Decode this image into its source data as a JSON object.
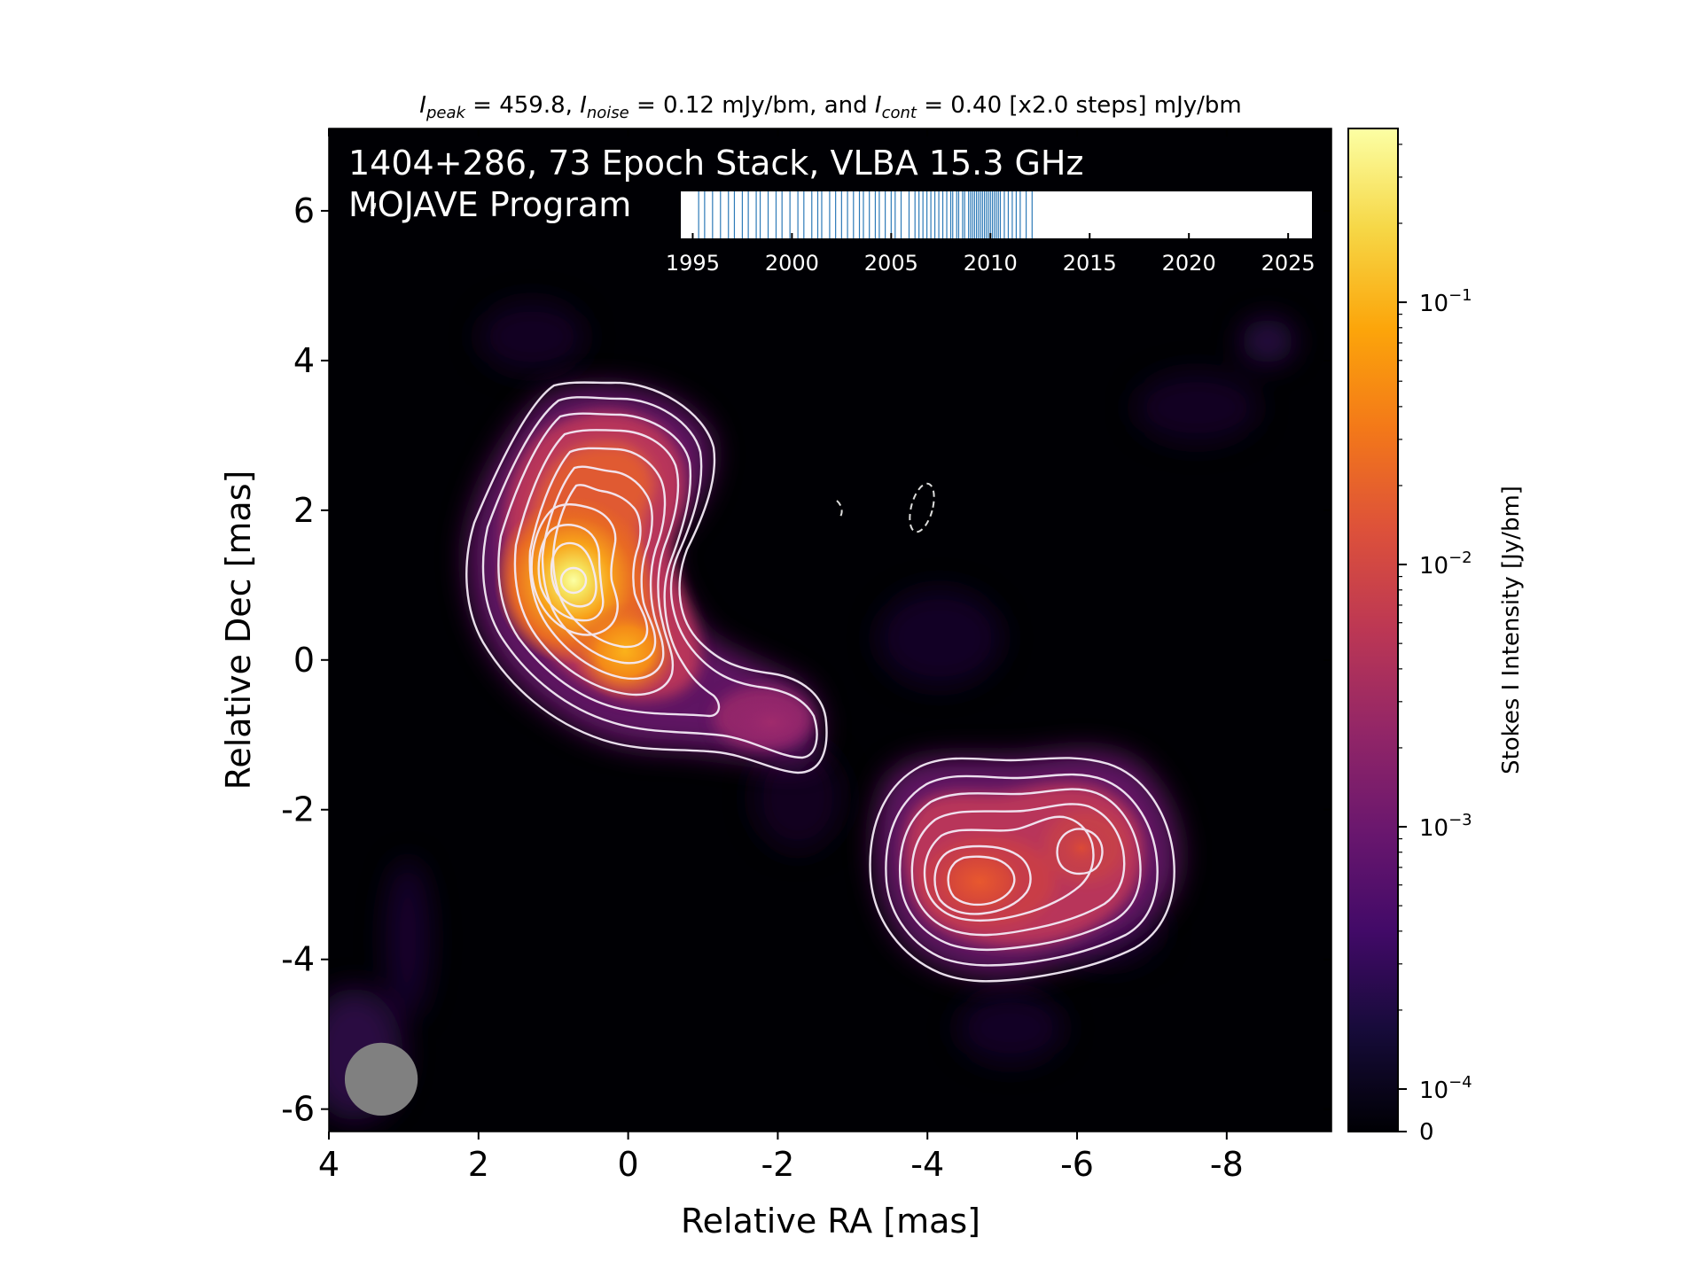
{
  "chart_data": {
    "type": "heatmap",
    "header_segments": [
      "I",
      "peak",
      " = 459.8, ",
      "I",
      "noise",
      " = 0.12 mJy/bm, and ",
      "I",
      "cont",
      " = 0.40 [x2.0 steps] mJy/bm"
    ],
    "title_line1": "1404+286, 73 Epoch Stack, VLBA 15.3 GHz",
    "title_line2": "MOJAVE Program",
    "xlabel": "Relative RA [mas]",
    "ylabel": "Relative Dec [mas]",
    "xlim": [
      4.0,
      -9.4
    ],
    "ylim": [
      -6.3,
      7.1
    ],
    "x_ticks": [
      4,
      2,
      0,
      -2,
      -4,
      -6,
      -8
    ],
    "x_tick_labels": [
      "4",
      "2",
      "0",
      "-2",
      "-4",
      "-6",
      "-8"
    ],
    "y_ticks": [
      6,
      4,
      2,
      0,
      -2,
      -4,
      -6
    ],
    "y_tick_labels": [
      "6",
      "4",
      "2",
      "0",
      "-2",
      "-4",
      "-6"
    ],
    "colormap": "inferno",
    "colorbar": {
      "label": "Stokes I Intensity [Jy/bm]",
      "scale": "log",
      "ticks": [
        {
          "value": 0.1,
          "base": "10",
          "exp": "−1"
        },
        {
          "value": 0.01,
          "base": "10",
          "exp": "−2"
        },
        {
          "value": 0.001,
          "base": "10",
          "exp": "−3"
        },
        {
          "value": 0.0001,
          "base": "10",
          "exp": "−4"
        }
      ],
      "zero_label": "0",
      "range": [
        0,
        0.4598
      ]
    },
    "components": [
      {
        "x": 0.8,
        "y": 1.05,
        "peak": 0.4598
      },
      {
        "x": 0.05,
        "y": 0.05,
        "peak": 0.14
      },
      {
        "x": -1.9,
        "y": -0.95,
        "peak": 0.0009
      },
      {
        "x": -4.6,
        "y": -3.0,
        "peak": 0.012
      },
      {
        "x": -6.1,
        "y": -2.6,
        "peak": 0.005
      }
    ],
    "contour_levels_mJy": [
      0.4,
      0.8,
      1.6,
      3.2,
      6.4,
      12.8,
      25.6,
      51.2,
      102.4,
      204.8,
      409.6
    ],
    "beam": {
      "x": 3.3,
      "y": -5.6,
      "bmaj_mas": 0.75,
      "bmin_mas": 0.75,
      "color": "#808080"
    },
    "epoch_timeline": {
      "tick_labels": [
        "1995",
        "2000",
        "2005",
        "2010",
        "2015",
        "2020",
        "2025"
      ],
      "tick_years": [
        1995,
        2000,
        2005,
        2010,
        2015,
        2020,
        2025
      ],
      "range": [
        1994.4,
        2026.2
      ],
      "epoch_count": 73,
      "epoch_years": [
        1995.3,
        1995.6,
        1996.0,
        1996.4,
        1996.8,
        1997.1,
        1997.5,
        1997.8,
        1998.2,
        1998.4,
        1998.8,
        1999.2,
        1999.5,
        1999.9,
        2000.3,
        2000.6,
        2001.0,
        2001.3,
        2001.5,
        2001.9,
        2002.2,
        2002.5,
        2002.8,
        2003.1,
        2003.4,
        2003.6,
        2003.9,
        2004.2,
        2004.4,
        2004.7,
        2005.0,
        2005.2,
        2005.5,
        2005.9,
        2006.2,
        2006.4,
        2006.6,
        2006.8,
        2007.0,
        2007.2,
        2007.4,
        2007.6,
        2007.8,
        2008.0,
        2008.1,
        2008.3,
        2008.4,
        2008.6,
        2008.7,
        2008.9,
        2009.0,
        2009.1,
        2009.2,
        2009.3,
        2009.4,
        2009.5,
        2009.6,
        2009.7,
        2009.8,
        2009.9,
        2010.0,
        2010.1,
        2010.2,
        2010.3,
        2010.4,
        2010.5,
        2010.7,
        2010.9,
        2011.1,
        2011.3,
        2011.5,
        2011.8,
        2012.1
      ],
      "line_color": "#2e7bb8"
    }
  }
}
